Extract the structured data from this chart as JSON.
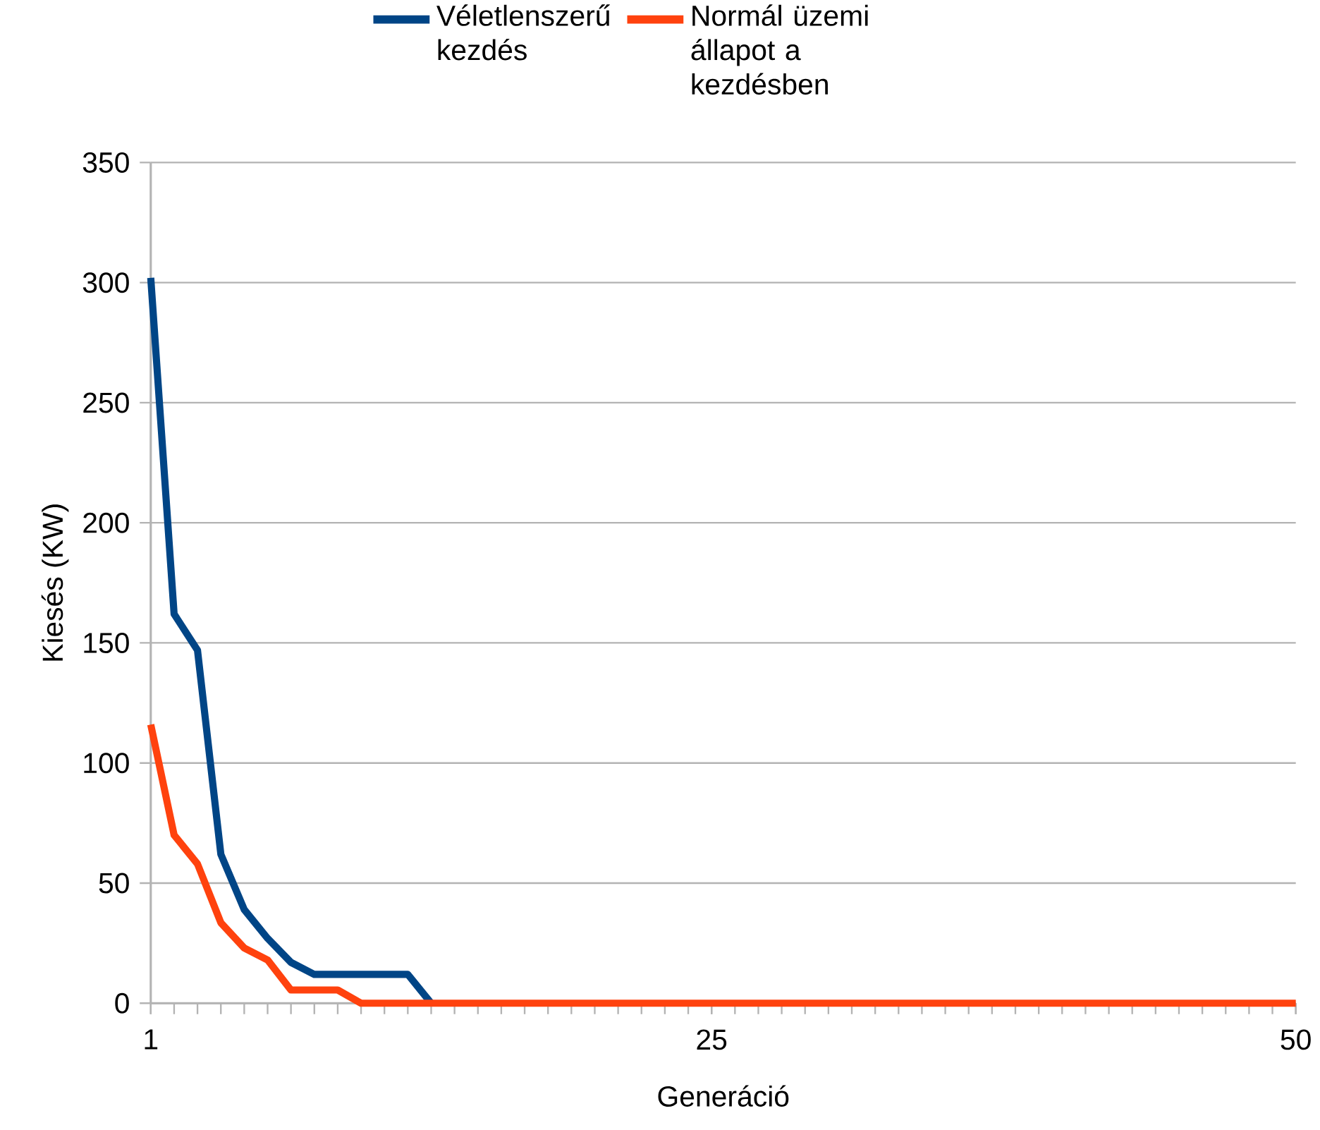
{
  "chart_data": {
    "type": "line",
    "xlabel": "Generáció",
    "ylabel": "Kiesés (KW)",
    "x": [
      1,
      2,
      3,
      4,
      5,
      6,
      7,
      8,
      9,
      10,
      11,
      12,
      13,
      14,
      15,
      16,
      17,
      18,
      19,
      20,
      21,
      22,
      23,
      24,
      25,
      26,
      27,
      28,
      29,
      30,
      31,
      32,
      33,
      34,
      35,
      36,
      37,
      38,
      39,
      40,
      41,
      42,
      43,
      44,
      45,
      46,
      47,
      48,
      49,
      50
    ],
    "xlim": [
      1,
      50
    ],
    "xticks": [
      1,
      25,
      50
    ],
    "ylim": [
      0,
      350
    ],
    "yticks": [
      0,
      50,
      100,
      150,
      200,
      250,
      300,
      350
    ],
    "grid": "y",
    "legend": "top",
    "marker": "none",
    "line_style": "solid",
    "series": [
      {
        "name": "Véletlenszerű kezdés",
        "color": "#004586",
        "values": [
          302,
          162,
          147,
          62,
          39,
          27,
          17,
          12,
          12,
          12,
          12,
          12,
          0,
          null,
          null,
          null,
          null,
          null,
          null,
          null,
          null,
          null,
          null,
          null,
          null,
          null,
          null,
          null,
          null,
          null,
          null,
          null,
          null,
          null,
          null,
          null,
          null,
          null,
          null,
          null,
          null,
          null,
          null,
          null,
          null,
          null,
          null,
          null,
          null,
          null
        ]
      },
      {
        "name": "Normál üzemi állapot a kezdésben",
        "color": "#ff420e",
        "values": [
          116,
          70,
          58,
          33.5,
          23,
          18,
          5.5,
          5.5,
          5.5,
          0,
          0,
          0,
          0,
          0,
          0,
          0,
          0,
          0,
          0,
          0,
          0,
          0,
          0,
          0,
          0,
          0,
          0,
          0,
          0,
          0,
          0,
          0,
          0,
          0,
          0,
          0,
          0,
          0,
          0,
          0,
          0,
          0,
          0,
          0,
          0,
          0,
          0,
          0,
          0,
          0
        ]
      }
    ]
  }
}
